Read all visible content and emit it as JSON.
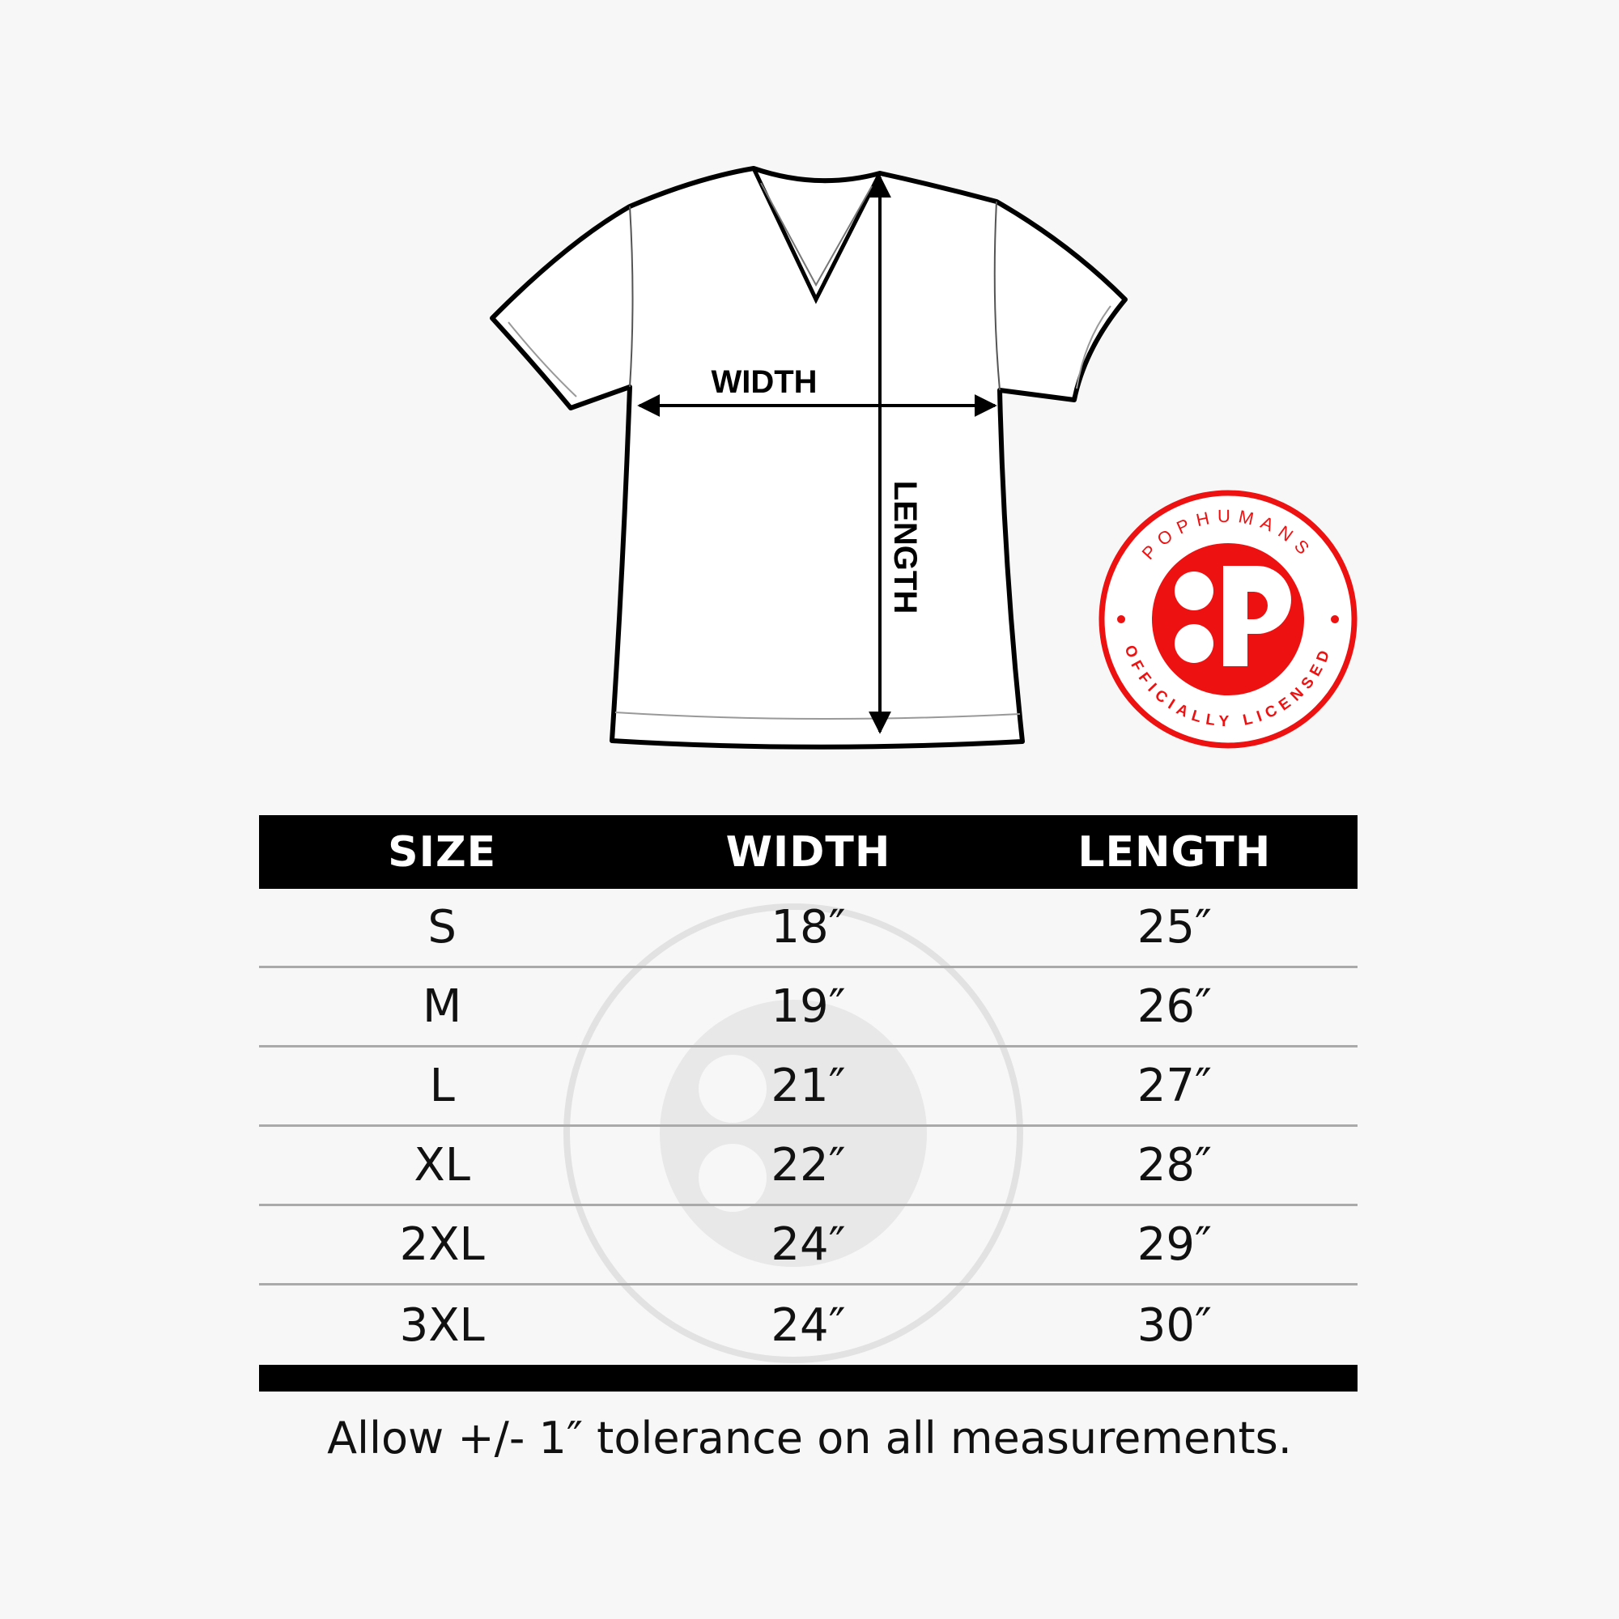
{
  "diagram": {
    "width_label": "WIDTH",
    "length_label": "LENGTH"
  },
  "badge": {
    "brand": "POPHUMANS",
    "subtitle": "OFFICIALLY LICENSED",
    "color": "#ee1111"
  },
  "table": {
    "headers": [
      "SIZE",
      "WIDTH",
      "LENGTH"
    ],
    "rows": [
      [
        "S",
        "18″",
        "25″"
      ],
      [
        "M",
        "19″",
        "26″"
      ],
      [
        "L",
        "21″",
        "27″"
      ],
      [
        "XL",
        "22″",
        "28″"
      ],
      [
        "2XL",
        "24″",
        "29″"
      ],
      [
        "3XL",
        "24″",
        "30″"
      ]
    ]
  },
  "footer": "Allow +/- 1″ tolerance on all measurements."
}
